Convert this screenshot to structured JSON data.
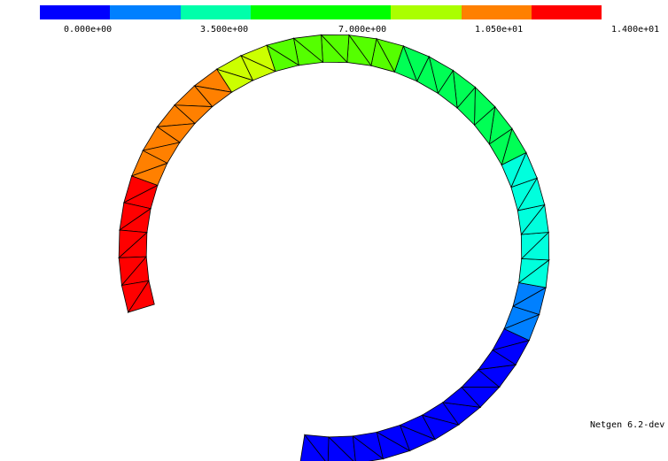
{
  "app": {
    "version": "Netgen 6.2-dev"
  },
  "colorbar": {
    "colors": [
      "#0000ff",
      "#0080ff",
      "#00ffaa",
      "#00ff00",
      "#00ff00",
      "#aaff00",
      "#ff8000",
      "#ff0000"
    ],
    "ticks": [
      "0.000e+00",
      "3.500e+00",
      "7.000e+00",
      "1.050e+01",
      "1.400e+01"
    ]
  },
  "mesh": {
    "element_colors": [
      "#0000ff",
      "#0080ff",
      "#00ffdd",
      "#00ff55",
      "#55ff00",
      "#ccff00",
      "#ff8000",
      "#ff0000"
    ]
  }
}
